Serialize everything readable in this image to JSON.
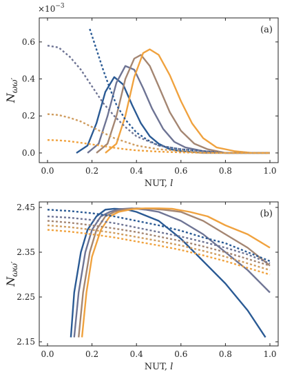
{
  "chart_data": [
    {
      "type": "line",
      "panel_label": "(a)",
      "xlabel": "NUT, l",
      "ylabel": "N_ωω′",
      "y_scale_note": "×10",
      "y_scale_exp": "−3",
      "xlim": [
        0.0,
        1.0
      ],
      "ylim": [
        -0.03,
        0.7
      ],
      "xticks": [
        "0.0",
        "0.2",
        "0.4",
        "0.6",
        "0.8",
        "1.0"
      ],
      "yticks": [
        "0.0",
        "0.2",
        "0.4",
        "0.6"
      ],
      "colors": [
        "#2a5a94",
        "#6e7494",
        "#a48672",
        "#cf9c5e",
        "#f0a23e"
      ],
      "series": [
        {
          "color": "#2a5a94",
          "dashed": false,
          "x": [
            0.13,
            0.18,
            0.22,
            0.26,
            0.3,
            0.34,
            0.38,
            0.42,
            0.46,
            0.5,
            0.55,
            0.6,
            0.7,
            0.8,
            0.9,
            1.0
          ],
          "y": [
            0.0,
            0.04,
            0.16,
            0.33,
            0.41,
            0.37,
            0.26,
            0.16,
            0.09,
            0.05,
            0.02,
            0.01,
            0.0,
            0.0,
            0.0,
            0.0
          ]
        },
        {
          "color": "#6e7494",
          "dashed": false,
          "x": [
            0.18,
            0.23,
            0.27,
            0.31,
            0.35,
            0.39,
            0.43,
            0.47,
            0.52,
            0.57,
            0.62,
            0.7,
            0.8,
            0.9,
            1.0
          ],
          "y": [
            0.0,
            0.05,
            0.2,
            0.38,
            0.47,
            0.45,
            0.35,
            0.24,
            0.13,
            0.06,
            0.03,
            0.01,
            0.0,
            0.0,
            0.0
          ]
        },
        {
          "color": "#a48672",
          "dashed": false,
          "x": [
            0.22,
            0.27,
            0.31,
            0.35,
            0.39,
            0.42,
            0.46,
            0.5,
            0.55,
            0.6,
            0.66,
            0.72,
            0.8,
            0.9,
            1.0
          ],
          "y": [
            0.0,
            0.05,
            0.2,
            0.4,
            0.51,
            0.53,
            0.47,
            0.36,
            0.22,
            0.12,
            0.05,
            0.02,
            0.0,
            0.0,
            0.0
          ]
        },
        {
          "color": "#f0a23e",
          "dashed": false,
          "x": [
            0.26,
            0.31,
            0.35,
            0.39,
            0.43,
            0.46,
            0.5,
            0.55,
            0.6,
            0.65,
            0.7,
            0.76,
            0.84,
            0.92,
            1.0
          ],
          "y": [
            0.0,
            0.05,
            0.2,
            0.41,
            0.54,
            0.56,
            0.53,
            0.42,
            0.28,
            0.16,
            0.08,
            0.03,
            0.01,
            0.0,
            0.0
          ]
        },
        {
          "color": "#2a5a94",
          "dashed": true,
          "x": [
            0.19,
            0.22,
            0.25,
            0.28,
            0.31,
            0.35,
            0.4,
            0.45,
            0.5,
            0.55,
            0.6,
            0.7,
            0.8,
            0.9,
            1.0
          ],
          "y": [
            0.67,
            0.56,
            0.45,
            0.35,
            0.26,
            0.18,
            0.11,
            0.07,
            0.04,
            0.03,
            0.02,
            0.01,
            0.0,
            0.0,
            0.0
          ]
        },
        {
          "color": "#6e7494",
          "dashed": true,
          "x": [
            0.0,
            0.05,
            0.1,
            0.15,
            0.2,
            0.25,
            0.3,
            0.35,
            0.4,
            0.5,
            0.6,
            0.7,
            0.8,
            0.9,
            1.0
          ],
          "y": [
            0.58,
            0.57,
            0.52,
            0.45,
            0.36,
            0.27,
            0.2,
            0.14,
            0.09,
            0.04,
            0.02,
            0.01,
            0.0,
            0.0,
            0.0
          ]
        },
        {
          "color": "#cf9c5e",
          "dashed": true,
          "x": [
            0.0,
            0.05,
            0.1,
            0.15,
            0.2,
            0.25,
            0.3,
            0.35,
            0.4,
            0.5,
            0.6,
            0.7,
            0.8,
            0.9,
            1.0
          ],
          "y": [
            0.21,
            0.205,
            0.19,
            0.17,
            0.14,
            0.11,
            0.08,
            0.06,
            0.04,
            0.02,
            0.01,
            0.0,
            0.0,
            0.0,
            0.0
          ]
        },
        {
          "color": "#f0a23e",
          "dashed": true,
          "x": [
            0.0,
            0.05,
            0.1,
            0.15,
            0.2,
            0.25,
            0.3,
            0.35,
            0.4,
            0.5,
            0.6,
            0.7,
            0.8,
            0.9,
            1.0
          ],
          "y": [
            0.07,
            0.068,
            0.063,
            0.055,
            0.046,
            0.037,
            0.028,
            0.02,
            0.014,
            0.007,
            0.003,
            0.001,
            0.0,
            0.0,
            0.0
          ]
        }
      ]
    },
    {
      "type": "line",
      "panel_label": "(b)",
      "xlabel": "NUT, l",
      "ylabel": "N_ωω′",
      "xlim": [
        0.0,
        1.0
      ],
      "ylim": [
        2.15,
        2.45
      ],
      "xticks": [
        "0.0",
        "0.2",
        "0.4",
        "0.6",
        "0.8",
        "1.0"
      ],
      "yticks": [
        "2.15",
        "2.25",
        "2.35",
        "2.45"
      ],
      "series": [
        {
          "color": "#2a5a94",
          "dashed": false,
          "x": [
            0.105,
            0.12,
            0.15,
            0.18,
            0.22,
            0.26,
            0.3,
            0.35,
            0.4,
            0.5,
            0.6,
            0.7,
            0.8,
            0.9,
            0.98
          ],
          "y": [
            2.16,
            2.26,
            2.35,
            2.4,
            2.43,
            2.445,
            2.447,
            2.446,
            2.44,
            2.42,
            2.38,
            2.33,
            2.28,
            2.22,
            2.16
          ]
        },
        {
          "color": "#6e7494",
          "dashed": false,
          "x": [
            0.12,
            0.14,
            0.17,
            0.2,
            0.24,
            0.28,
            0.32,
            0.38,
            0.44,
            0.5,
            0.6,
            0.7,
            0.8,
            0.9,
            1.0
          ],
          "y": [
            2.16,
            2.26,
            2.35,
            2.4,
            2.43,
            2.44,
            2.446,
            2.448,
            2.445,
            2.44,
            2.42,
            2.39,
            2.35,
            2.31,
            2.26
          ]
        },
        {
          "color": "#a48672",
          "dashed": false,
          "x": [
            0.14,
            0.16,
            0.19,
            0.22,
            0.26,
            0.3,
            0.35,
            0.4,
            0.46,
            0.52,
            0.6,
            0.7,
            0.8,
            0.9,
            1.0
          ],
          "y": [
            2.16,
            2.26,
            2.35,
            2.4,
            2.43,
            2.44,
            2.446,
            2.448,
            2.447,
            2.445,
            2.44,
            2.42,
            2.39,
            2.36,
            2.32
          ]
        },
        {
          "color": "#f0a23e",
          "dashed": false,
          "x": [
            0.155,
            0.175,
            0.2,
            0.24,
            0.28,
            0.32,
            0.38,
            0.44,
            0.5,
            0.56,
            0.64,
            0.72,
            0.8,
            0.9,
            1.0
          ],
          "y": [
            2.16,
            2.26,
            2.34,
            2.4,
            2.43,
            2.44,
            2.446,
            2.448,
            2.448,
            2.447,
            2.44,
            2.43,
            2.41,
            2.39,
            2.36
          ]
        },
        {
          "color": "#2a5a94",
          "dashed": true,
          "x": [
            0.0,
            0.1,
            0.2,
            0.3,
            0.4,
            0.5,
            0.6,
            0.7,
            0.8,
            0.9,
            1.0
          ],
          "y": [
            2.445,
            2.442,
            2.437,
            2.43,
            2.42,
            2.41,
            2.398,
            2.383,
            2.37,
            2.35,
            2.33
          ]
        },
        {
          "color": "#6e7494",
          "dashed": true,
          "x": [
            0.0,
            0.1,
            0.2,
            0.3,
            0.4,
            0.5,
            0.6,
            0.7,
            0.8,
            0.9,
            1.0
          ],
          "y": [
            2.43,
            2.427,
            2.422,
            2.415,
            2.405,
            2.395,
            2.385,
            2.373,
            2.36,
            2.345,
            2.325
          ]
        },
        {
          "color": "#a48672",
          "dashed": true,
          "x": [
            0.0,
            0.1,
            0.2,
            0.3,
            0.4,
            0.5,
            0.6,
            0.7,
            0.8,
            0.9,
            1.0
          ],
          "y": [
            2.42,
            2.416,
            2.41,
            2.403,
            2.395,
            2.385,
            2.375,
            2.363,
            2.35,
            2.335,
            2.32
          ]
        },
        {
          "color": "#cf9c5e",
          "dashed": true,
          "x": [
            0.0,
            0.1,
            0.2,
            0.3,
            0.4,
            0.5,
            0.6,
            0.7,
            0.8,
            0.9,
            1.0
          ],
          "y": [
            2.41,
            2.406,
            2.4,
            2.393,
            2.384,
            2.375,
            2.365,
            2.353,
            2.34,
            2.325,
            2.31
          ]
        },
        {
          "color": "#f0a23e",
          "dashed": true,
          "x": [
            0.0,
            0.1,
            0.2,
            0.3,
            0.4,
            0.5,
            0.6,
            0.7,
            0.8,
            0.9,
            1.0
          ],
          "y": [
            2.4,
            2.396,
            2.39,
            2.383,
            2.374,
            2.365,
            2.355,
            2.343,
            2.33,
            2.315,
            2.3
          ]
        }
      ]
    }
  ]
}
